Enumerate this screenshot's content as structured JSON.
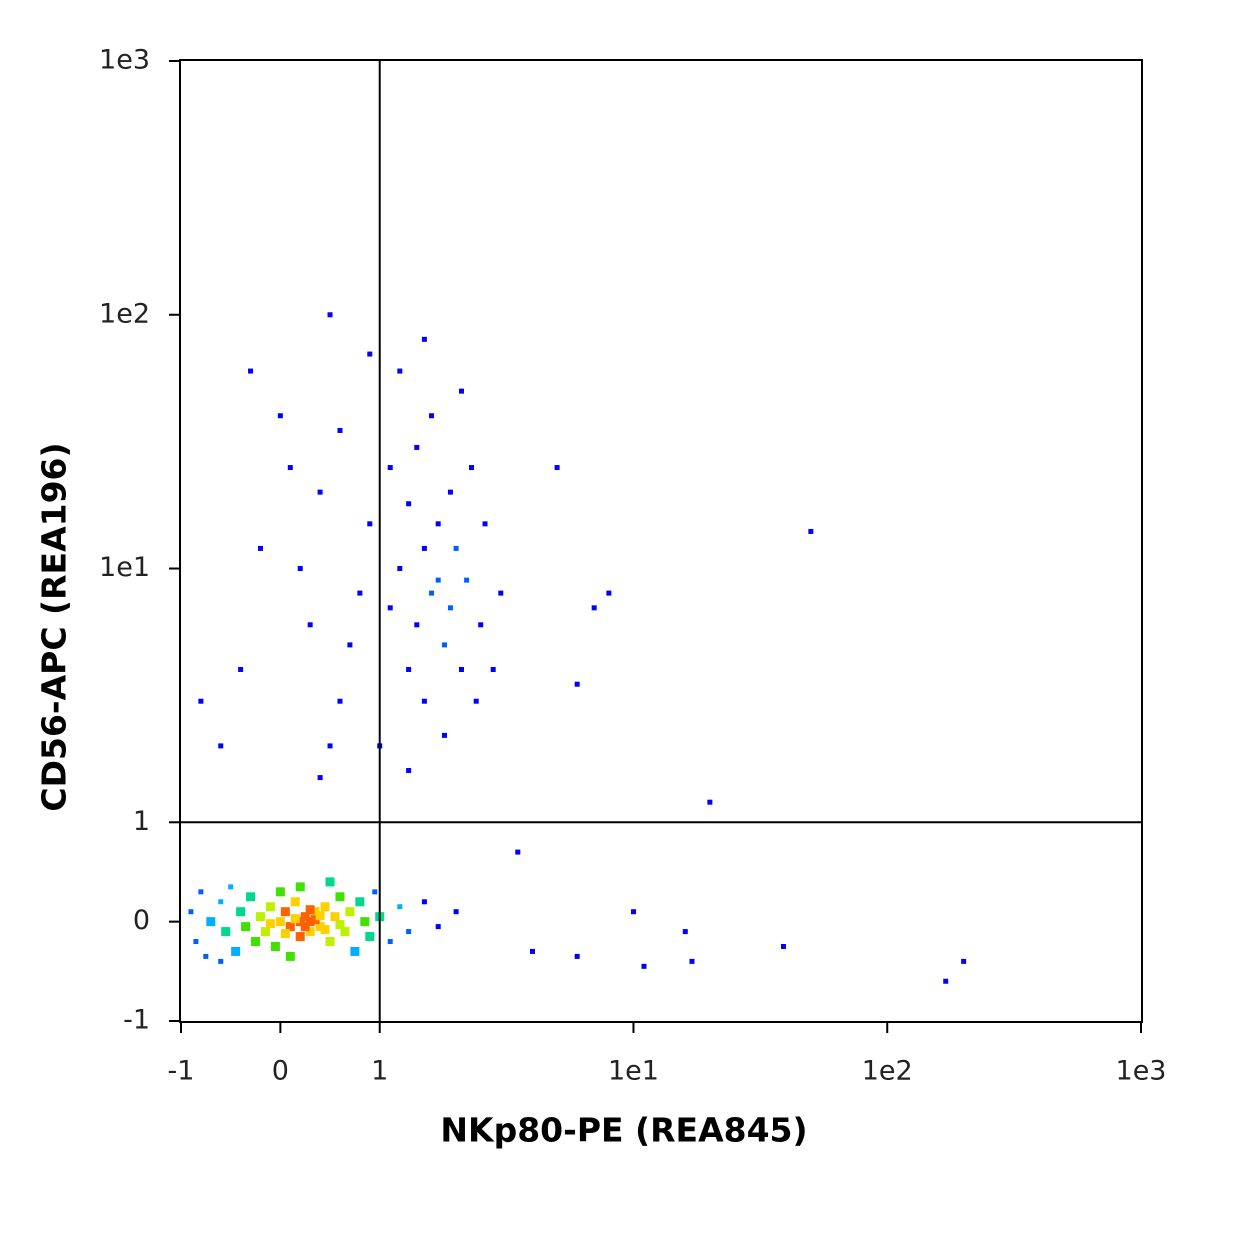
{
  "chart_data": {
    "type": "scatter",
    "xlabel": "NKp80-PE (REA845)",
    "ylabel": "CD56-APC (REA196)",
    "scale": "biexponential",
    "xlim": [
      -1,
      1000
    ],
    "ylim": [
      -1,
      1000
    ],
    "xticks": [
      -1,
      0,
      1,
      {
        "value": 10,
        "label": "1e1"
      },
      {
        "value": 100,
        "label": "1e2"
      },
      {
        "value": 1000,
        "label": "1e3"
      }
    ],
    "yticks": [
      -1,
      0,
      1,
      {
        "value": 10,
        "label": "1e1"
      },
      {
        "value": 100,
        "label": "1e2"
      },
      {
        "value": 1000,
        "label": "1e3"
      }
    ],
    "gates": {
      "x": 1,
      "y": 1
    },
    "color": "#0000ff",
    "x": [
      -0.9,
      -0.85,
      -0.8,
      -0.75,
      -0.7,
      -0.6,
      -0.55,
      -0.5,
      -0.45,
      -0.4,
      -0.35,
      -0.3,
      -0.25,
      -0.2,
      -0.15,
      -0.1,
      -0.05,
      0,
      0.05,
      0.1,
      0.15,
      0.2,
      0.25,
      0.3,
      0.3,
      0.35,
      0.4,
      0.45,
      0.5,
      0.55,
      0.6,
      0.65,
      0.7,
      0.75,
      0.8,
      0.85,
      0.9,
      0.95,
      1.0,
      1.1,
      1.2,
      1.3,
      1.5,
      1.7,
      2.0,
      0.2,
      0.1,
      -0.6,
      0.5,
      0.0,
      0.2,
      0.25,
      0.35,
      0.15,
      0.4,
      -0.1,
      0.6,
      0.05,
      0.3,
      0.45,
      1.2,
      1.4,
      1.6,
      1.8,
      2.0,
      1.3,
      1.5,
      1.1,
      2.2,
      2.5,
      1.7,
      1.9,
      2.3,
      1.4,
      1.6,
      2.1,
      1.2,
      0.9,
      0.8,
      0.7,
      0.6,
      0.5,
      0.4,
      0.3,
      0.2,
      0.1,
      0.0,
      -0.2,
      -0.4,
      -0.6,
      -0.8,
      1.0,
      1.3,
      1.8,
      2.4,
      2.8,
      3.0,
      2.6,
      1.5,
      0.5,
      0.9,
      1.1,
      1.3,
      1.5,
      1.7,
      1.9,
      2.1,
      0.6,
      0.4,
      -0.3,
      5,
      8,
      7,
      6,
      50,
      20,
      4,
      10,
      16,
      17,
      39,
      170,
      200,
      3.5,
      11,
      6
    ],
    "y": [
      0.1,
      -0.2,
      0.3,
      -0.35,
      0.0,
      0.2,
      -0.1,
      0.35,
      -0.3,
      0.1,
      -0.05,
      0.25,
      -0.2,
      0.05,
      -0.1,
      0.15,
      -0.25,
      0,
      0.1,
      -0.05,
      0.2,
      -0.15,
      0.05,
      0,
      -0.1,
      0.1,
      -0.05,
      0.15,
      -0.2,
      0.05,
      0.25,
      -0.1,
      0.1,
      -0.3,
      0.2,
      0,
      -0.15,
      0.3,
      0.05,
      -0.2,
      0.15,
      -0.1,
      0.2,
      -0.05,
      0.1,
      0.35,
      -0.35,
      -0.4,
      0.4,
      0.3,
      0.0,
      -0.05,
      0.02,
      0.03,
      0.06,
      -0.02,
      -0.03,
      -0.12,
      0.12,
      -0.08,
      10,
      6,
      8,
      5,
      12,
      4,
      3,
      7,
      9,
      6,
      15,
      20,
      25,
      30,
      40,
      50,
      60,
      15,
      8,
      5,
      3,
      2,
      1.5,
      6,
      10,
      25,
      40,
      12,
      4,
      2,
      3,
      2,
      1.6,
      2.2,
      3,
      4,
      8,
      15,
      80,
      100,
      70,
      25,
      18,
      12,
      9,
      7,
      4,
      35,
      20,
      60,
      25,
      8,
      7,
      3.5,
      14,
      1.2,
      -0.3,
      0.1,
      -0.1,
      -0.4,
      -0.25,
      -0.6,
      -0.4,
      0.7,
      -0.45,
      -0.35
    ]
  }
}
